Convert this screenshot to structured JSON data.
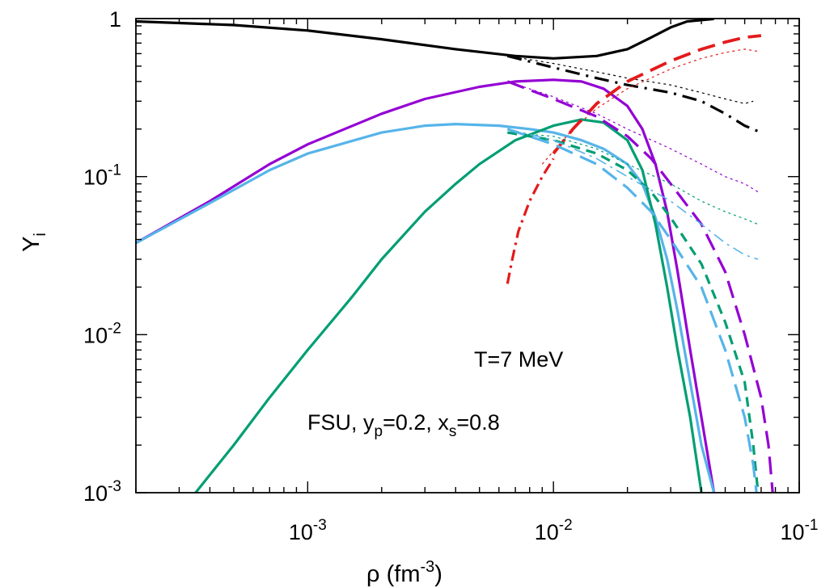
{
  "chart_data": {
    "type": "line",
    "xlabel": "ρ (fm",
    "xlabel_sup": "-3",
    "xlabel_tail": ")",
    "ylabel": "Y",
    "ylabel_sub": "i",
    "xscale": "log",
    "yscale": "log",
    "xlim": [
      0.0002,
      0.1
    ],
    "ylim": [
      0.001,
      1
    ],
    "grid": false,
    "legend": "none",
    "x_ticks": [
      {
        "value": 0.001,
        "base": "10",
        "exp": "-3"
      },
      {
        "value": 0.01,
        "base": "10",
        "exp": "-2"
      },
      {
        "value": 0.1,
        "base": "10",
        "exp": "-1"
      }
    ],
    "y_ticks": [
      {
        "value": 1,
        "base": "1",
        "exp": ""
      },
      {
        "value": 0.1,
        "base": "10",
        "exp": "-1"
      },
      {
        "value": 0.01,
        "base": "10",
        "exp": "-2"
      },
      {
        "value": 0.001,
        "base": "10",
        "exp": "-3"
      }
    ],
    "annotations": {
      "temperature": "T=7 MeV",
      "model_prefix": "FSU, y",
      "model_sub1": "p",
      "model_mid": "=0.2, x",
      "model_sub2": "s",
      "model_tail": "=0.8"
    },
    "series": [
      {
        "color": "#000000",
        "dash": "solid",
        "width": 3.2,
        "points": [
          [
            0.0002,
            0.96
          ],
          [
            0.0005,
            0.91
          ],
          [
            0.001,
            0.84
          ],
          [
            0.002,
            0.74
          ],
          [
            0.004,
            0.64
          ],
          [
            0.007,
            0.58
          ],
          [
            0.01,
            0.56
          ],
          [
            0.015,
            0.58
          ],
          [
            0.02,
            0.64
          ],
          [
            0.025,
            0.76
          ],
          [
            0.03,
            0.88
          ],
          [
            0.035,
            0.96
          ],
          [
            0.045,
            0.995
          ]
        ]
      },
      {
        "color": "#9400D3",
        "dash": "solid",
        "width": 3.2,
        "points": [
          [
            0.0002,
            0.038
          ],
          [
            0.0004,
            0.07
          ],
          [
            0.0007,
            0.12
          ],
          [
            0.001,
            0.16
          ],
          [
            0.002,
            0.25
          ],
          [
            0.003,
            0.31
          ],
          [
            0.005,
            0.37
          ],
          [
            0.007,
            0.4
          ],
          [
            0.01,
            0.41
          ],
          [
            0.013,
            0.4
          ],
          [
            0.016,
            0.36
          ],
          [
            0.02,
            0.28
          ],
          [
            0.023,
            0.2
          ],
          [
            0.026,
            0.12
          ],
          [
            0.029,
            0.06
          ],
          [
            0.032,
            0.025
          ],
          [
            0.036,
            0.008
          ],
          [
            0.04,
            0.003
          ],
          [
            0.045,
            0.001
          ]
        ]
      },
      {
        "color": "#56B4E9",
        "dash": "solid",
        "width": 3.2,
        "points": [
          [
            0.0002,
            0.038
          ],
          [
            0.0004,
            0.068
          ],
          [
            0.0007,
            0.11
          ],
          [
            0.001,
            0.14
          ],
          [
            0.002,
            0.19
          ],
          [
            0.003,
            0.21
          ],
          [
            0.004,
            0.215
          ],
          [
            0.006,
            0.21
          ],
          [
            0.008,
            0.2
          ],
          [
            0.01,
            0.19
          ],
          [
            0.013,
            0.17
          ],
          [
            0.016,
            0.15
          ],
          [
            0.02,
            0.12
          ],
          [
            0.023,
            0.09
          ],
          [
            0.026,
            0.055
          ],
          [
            0.029,
            0.03
          ],
          [
            0.032,
            0.014
          ],
          [
            0.036,
            0.005
          ],
          [
            0.04,
            0.002
          ],
          [
            0.045,
            0.001
          ]
        ]
      },
      {
        "color": "#009E73",
        "dash": "solid",
        "width": 3.2,
        "points": [
          [
            0.00035,
            0.001
          ],
          [
            0.0005,
            0.002
          ],
          [
            0.0007,
            0.004
          ],
          [
            0.001,
            0.008
          ],
          [
            0.0015,
            0.017
          ],
          [
            0.002,
            0.03
          ],
          [
            0.003,
            0.06
          ],
          [
            0.004,
            0.09
          ],
          [
            0.005,
            0.12
          ],
          [
            0.007,
            0.17
          ],
          [
            0.01,
            0.21
          ],
          [
            0.013,
            0.23
          ],
          [
            0.016,
            0.22
          ],
          [
            0.02,
            0.17
          ],
          [
            0.023,
            0.11
          ],
          [
            0.026,
            0.05
          ],
          [
            0.029,
            0.02
          ],
          [
            0.032,
            0.008
          ],
          [
            0.036,
            0.003
          ],
          [
            0.04,
            0.001
          ]
        ]
      },
      {
        "color": "#000000",
        "dash": "18,8,3,8",
        "width": 3.2,
        "points": [
          [
            0.0065,
            0.58
          ],
          [
            0.01,
            0.49
          ],
          [
            0.015,
            0.42
          ],
          [
            0.02,
            0.38
          ],
          [
            0.03,
            0.34
          ],
          [
            0.04,
            0.3
          ],
          [
            0.05,
            0.25
          ],
          [
            0.06,
            0.21
          ],
          [
            0.07,
            0.19
          ]
        ]
      },
      {
        "color": "#000000",
        "dash": "3,4",
        "width": 1.2,
        "points": [
          [
            0.0065,
            0.58
          ],
          [
            0.01,
            0.52
          ],
          [
            0.015,
            0.46
          ],
          [
            0.02,
            0.42
          ],
          [
            0.03,
            0.38
          ],
          [
            0.04,
            0.34
          ],
          [
            0.05,
            0.31
          ],
          [
            0.06,
            0.29
          ],
          [
            0.065,
            0.3
          ]
        ]
      },
      {
        "color": "#E41A1C",
        "dash": "22,10",
        "width": 3.8,
        "points": [
          [
            0.01,
            0.14
          ],
          [
            0.012,
            0.2
          ],
          [
            0.015,
            0.29
          ],
          [
            0.02,
            0.4
          ],
          [
            0.03,
            0.54
          ],
          [
            0.04,
            0.64
          ],
          [
            0.05,
            0.71
          ],
          [
            0.06,
            0.76
          ],
          [
            0.07,
            0.78
          ]
        ]
      },
      {
        "color": "#E41A1C",
        "dash": "14,6,3,6",
        "width": 3.2,
        "points": [
          [
            0.0065,
            0.021
          ],
          [
            0.0068,
            0.03
          ],
          [
            0.0072,
            0.045
          ],
          [
            0.008,
            0.07
          ],
          [
            0.009,
            0.1
          ],
          [
            0.01,
            0.13
          ]
        ]
      },
      {
        "color": "#E41A1C",
        "dash": "3,4",
        "width": 1.2,
        "points": [
          [
            0.009,
            0.12
          ],
          [
            0.012,
            0.2
          ],
          [
            0.015,
            0.27
          ],
          [
            0.02,
            0.36
          ],
          [
            0.03,
            0.48
          ],
          [
            0.04,
            0.56
          ],
          [
            0.05,
            0.61
          ],
          [
            0.06,
            0.64
          ],
          [
            0.068,
            0.62
          ]
        ]
      },
      {
        "color": "#9400D3",
        "dash": "22,10",
        "width": 3.2,
        "points": [
          [
            0.0065,
            0.4
          ],
          [
            0.01,
            0.31
          ],
          [
            0.015,
            0.24
          ],
          [
            0.02,
            0.18
          ],
          [
            0.025,
            0.13
          ],
          [
            0.03,
            0.09
          ],
          [
            0.04,
            0.05
          ],
          [
            0.05,
            0.025
          ],
          [
            0.06,
            0.01
          ],
          [
            0.07,
            0.004
          ],
          [
            0.075,
            0.002
          ],
          [
            0.078,
            0.001
          ]
        ]
      },
      {
        "color": "#9400D3",
        "dash": "3,4",
        "width": 1.2,
        "points": [
          [
            0.0065,
            0.4
          ],
          [
            0.01,
            0.32
          ],
          [
            0.015,
            0.25
          ],
          [
            0.02,
            0.2
          ],
          [
            0.03,
            0.15
          ],
          [
            0.04,
            0.12
          ],
          [
            0.05,
            0.1
          ],
          [
            0.06,
            0.09
          ],
          [
            0.068,
            0.08
          ]
        ]
      },
      {
        "color": "#009E73",
        "dash": "12,8",
        "width": 3.2,
        "points": [
          [
            0.0065,
            0.19
          ],
          [
            0.01,
            0.17
          ],
          [
            0.015,
            0.14
          ],
          [
            0.02,
            0.11
          ],
          [
            0.025,
            0.08
          ],
          [
            0.03,
            0.055
          ],
          [
            0.04,
            0.028
          ],
          [
            0.05,
            0.012
          ],
          [
            0.06,
            0.005
          ],
          [
            0.065,
            0.002
          ],
          [
            0.068,
            0.001
          ]
        ]
      },
      {
        "color": "#009E73",
        "dash": "3,4",
        "width": 1.2,
        "points": [
          [
            0.0065,
            0.19
          ],
          [
            0.01,
            0.18
          ],
          [
            0.015,
            0.15
          ],
          [
            0.02,
            0.12
          ],
          [
            0.03,
            0.09
          ],
          [
            0.04,
            0.07
          ],
          [
            0.05,
            0.06
          ],
          [
            0.06,
            0.054
          ],
          [
            0.068,
            0.05
          ]
        ]
      },
      {
        "color": "#56B4E9",
        "dash": "22,10",
        "width": 3.2,
        "points": [
          [
            0.0065,
            0.2
          ],
          [
            0.01,
            0.16
          ],
          [
            0.015,
            0.12
          ],
          [
            0.02,
            0.085
          ],
          [
            0.025,
            0.06
          ],
          [
            0.03,
            0.04
          ],
          [
            0.04,
            0.02
          ],
          [
            0.05,
            0.008
          ],
          [
            0.06,
            0.003
          ],
          [
            0.065,
            0.0015
          ],
          [
            0.067,
            0.001
          ]
        ]
      },
      {
        "color": "#56B4E9",
        "dash": "14,6,3,6",
        "width": 1.6,
        "points": [
          [
            0.0065,
            0.2
          ],
          [
            0.01,
            0.17
          ],
          [
            0.015,
            0.13
          ],
          [
            0.02,
            0.1
          ],
          [
            0.03,
            0.07
          ],
          [
            0.04,
            0.05
          ],
          [
            0.05,
            0.038
          ],
          [
            0.06,
            0.032
          ],
          [
            0.068,
            0.03
          ]
        ]
      }
    ]
  }
}
